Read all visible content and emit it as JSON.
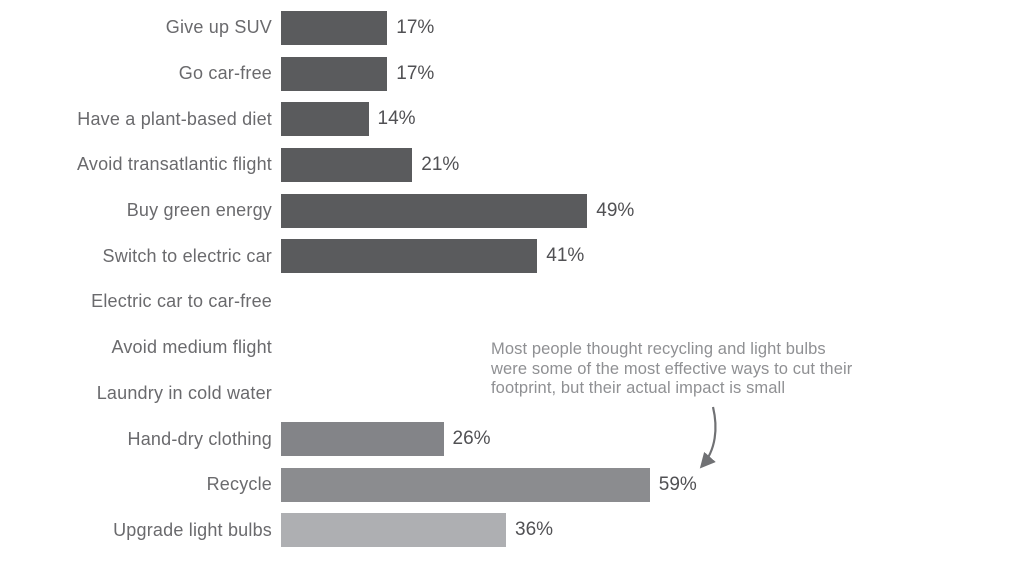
{
  "chart_data": {
    "type": "bar",
    "orientation": "horizontal",
    "unit": "%",
    "title": "",
    "xlabel": "",
    "ylabel": "",
    "xlim": [
      0,
      64
    ],
    "grid": false,
    "legend": false,
    "categories": [
      "Give up SUV",
      "Go car-free",
      "Have a plant-based diet",
      "Avoid transatlantic flight",
      "Buy green energy",
      "Switch to electric car",
      "Electric car to car-free",
      "Avoid medium flight",
      "Laundry in cold water",
      "Hand-dry clothing",
      "Recycle",
      "Upgrade light bulbs"
    ],
    "values": [
      17,
      17,
      14,
      21,
      49,
      41,
      null,
      null,
      null,
      26,
      59,
      36
    ],
    "items": [
      {
        "category": "Give up SUV",
        "value": 17,
        "value_label": "17%",
        "color": "#5a5b5d"
      },
      {
        "category": "Go car-free",
        "value": 17,
        "value_label": "17%",
        "color": "#5a5b5d"
      },
      {
        "category": "Have a plant-based diet",
        "value": 14,
        "value_label": "14%",
        "color": "#5a5b5d"
      },
      {
        "category": "Avoid transatlantic flight",
        "value": 21,
        "value_label": "21%",
        "color": "#5a5b5d"
      },
      {
        "category": "Buy green energy",
        "value": 49,
        "value_label": "49%",
        "color": "#5a5b5d"
      },
      {
        "category": "Switch to electric car",
        "value": 41,
        "value_label": "41%",
        "color": "#5a5b5d"
      },
      {
        "category": "Electric car to car-free",
        "value": null,
        "value_label": null,
        "color": null
      },
      {
        "category": "Avoid medium flight",
        "value": null,
        "value_label": null,
        "color": null
      },
      {
        "category": "Laundry in cold water",
        "value": null,
        "value_label": null,
        "color": null
      },
      {
        "category": "Hand-dry clothing",
        "value": 26,
        "value_label": "26%",
        "color": "#838488"
      },
      {
        "category": "Recycle",
        "value": 59,
        "value_label": "59%",
        "color": "#8b8c8f"
      },
      {
        "category": "Upgrade light bulbs",
        "value": 36,
        "value_label": "36%",
        "color": "#aeafb2"
      }
    ],
    "annotation": {
      "lines": [
        "Most people thought recycling and light bulbs",
        "were some of the most effective ways to cut their",
        "footprint, but their actual impact is small"
      ],
      "points_to": "Recycle",
      "arrow_color": "#707174"
    }
  }
}
